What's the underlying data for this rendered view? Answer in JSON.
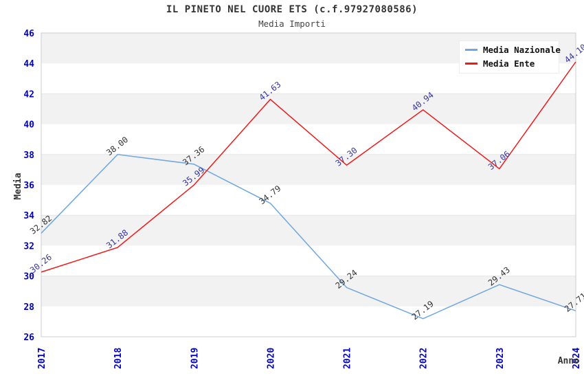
{
  "header": {
    "title": "IL PINETO NEL CUORE ETS (c.f.97927080586)",
    "subtitle": "Media Importi"
  },
  "chart_data": {
    "type": "line",
    "title": "IL PINETO NEL CUORE ETS (c.f.97927080586)",
    "subtitle": "Media Importi",
    "xlabel": "Anno",
    "ylabel": "Media",
    "x": [
      2017,
      2018,
      2019,
      2020,
      2021,
      2022,
      2023,
      2024
    ],
    "ylim": [
      26,
      46
    ],
    "ytick_step": 2,
    "grid": "horizontal-bands",
    "legend_position": "top-right",
    "point_label_decimals": 2,
    "series": [
      {
        "name": "Media Nazionale",
        "color": "#6fa7df",
        "label_color": "#333333",
        "values": [
          32.82,
          38.0,
          37.36,
          34.79,
          29.24,
          27.19,
          29.43,
          27.71
        ]
      },
      {
        "name": "Media Ente",
        "color": "#ee1a1a",
        "label_color": "#37379e",
        "values": [
          30.26,
          31.88,
          35.99,
          41.63,
          37.3,
          40.94,
          37.06,
          44.1
        ]
      }
    ],
    "colors": {
      "tick_label": "#0000cc",
      "band": "#f2f2f2",
      "plot_border": "#cccccc",
      "axis_title": "#333333"
    }
  }
}
